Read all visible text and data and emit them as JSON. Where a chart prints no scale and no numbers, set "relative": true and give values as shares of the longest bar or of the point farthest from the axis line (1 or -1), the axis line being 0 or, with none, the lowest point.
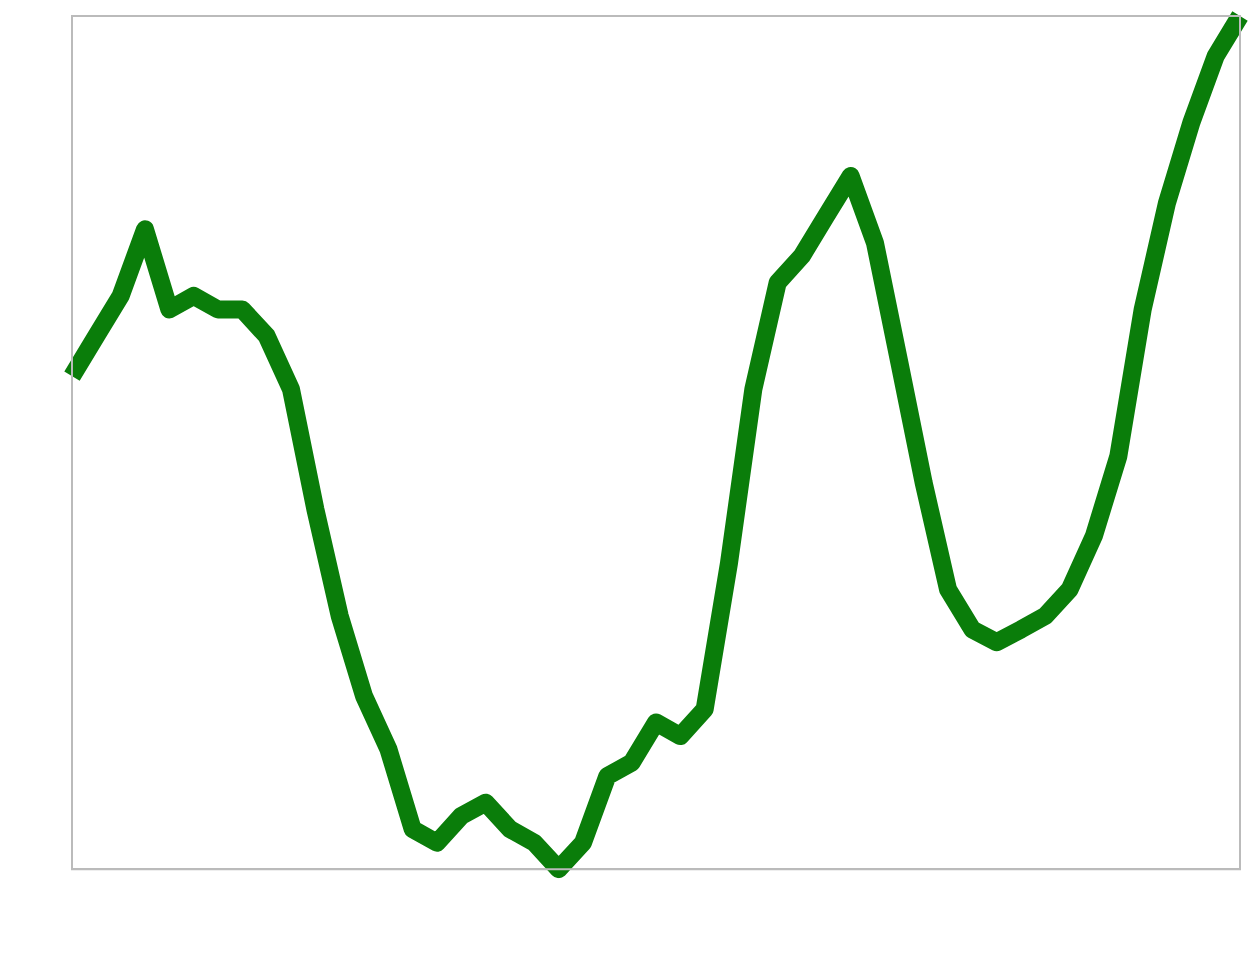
{
  "chart_data": {
    "type": "line",
    "relative": true,
    "grid": false,
    "legend": false,
    "marker": "none",
    "line_style": "solid",
    "categories": [
      null,
      null,
      null,
      null,
      null,
      null,
      null,
      null,
      null,
      null,
      null,
      null,
      null,
      null,
      null,
      null,
      null,
      null,
      null,
      null,
      null,
      null,
      null,
      null,
      null,
      null,
      null,
      null,
      null,
      null,
      null,
      null,
      null,
      null,
      null,
      null,
      null,
      null,
      null,
      null,
      null,
      null,
      null,
      null,
      null,
      null,
      null,
      null,
      null
    ],
    "series": [
      {
        "color": "#0a7d0a",
        "values": [
          0.578,
          0.625,
          0.672,
          0.75,
          0.656,
          0.672,
          0.656,
          0.656,
          0.625,
          0.5625,
          0.422,
          0.297,
          0.203,
          0.141,
          0.047,
          0.031,
          0.0625,
          0.078,
          0.047,
          0.031,
          0,
          0.031,
          0.109,
          0.125,
          0.172,
          0.156,
          0.1875,
          0.359,
          0.5625,
          0.6875,
          0.719,
          0.766,
          0.8125,
          0.734,
          0.594,
          0.453,
          0.328,
          0.281,
          0.266,
          0.281,
          0.297,
          0.328,
          0.391,
          0.484,
          0.656,
          0.781,
          0.875,
          0.953,
          1
        ]
      }
    ]
  }
}
